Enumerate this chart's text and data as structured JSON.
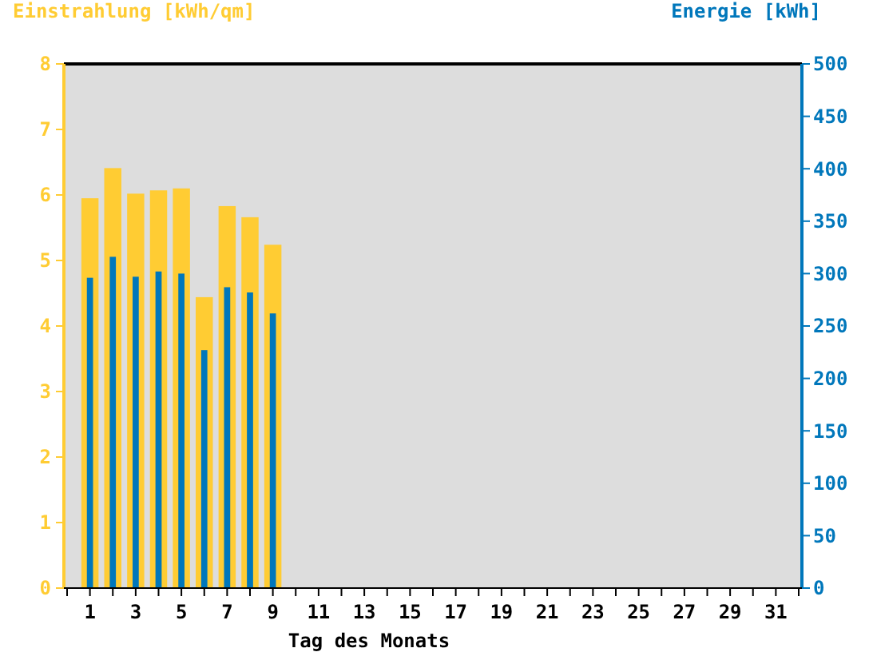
{
  "chart_data": {
    "type": "bar",
    "xlabel": "Tag des Monats",
    "ylabel": "Einstrahlung [kWh/qm]",
    "y2label": "Energie [kWh]",
    "x": [
      1,
      2,
      3,
      4,
      5,
      6,
      7,
      8,
      9
    ],
    "xlim": [
      0,
      32
    ],
    "xticks": [
      {
        "value": 0,
        "label": null
      },
      1,
      {
        "value": 2,
        "label": null
      },
      3,
      {
        "value": 4,
        "label": null
      },
      5,
      {
        "value": 6,
        "label": null
      },
      7,
      {
        "value": 8,
        "label": null
      },
      9,
      {
        "value": 10,
        "label": null
      },
      11,
      {
        "value": 12,
        "label": null
      },
      13,
      {
        "value": 14,
        "label": null
      },
      15,
      {
        "value": 16,
        "label": null
      },
      17,
      {
        "value": 18,
        "label": null
      },
      19,
      {
        "value": 20,
        "label": null
      },
      21,
      {
        "value": 22,
        "label": null
      },
      23,
      {
        "value": 24,
        "label": null
      },
      25,
      {
        "value": 26,
        "label": null
      },
      27,
      {
        "value": 28,
        "label": null
      },
      29,
      {
        "value": 30,
        "label": null
      },
      31,
      {
        "value": 32,
        "label": null
      }
    ],
    "series": [
      {
        "color": "#ffcc33",
        "values": [
          5.95,
          6.41,
          6.02,
          6.07,
          6.1,
          4.44,
          5.83,
          5.66,
          5.24
        ]
      },
      {
        "color": "#0077bb",
        "axis": "y2",
        "values": [
          296,
          316,
          297,
          302,
          300,
          227,
          287,
          282,
          262
        ]
      }
    ],
    "ylim": [
      0,
      8
    ],
    "yticks": [
      0,
      1,
      2,
      3,
      4,
      5,
      6,
      7,
      8
    ],
    "y2lim": [
      0,
      500
    ],
    "y2ticks": [
      0,
      50,
      100,
      150,
      200,
      250,
      300,
      350,
      400,
      450,
      500
    ],
    "grid": false
  }
}
